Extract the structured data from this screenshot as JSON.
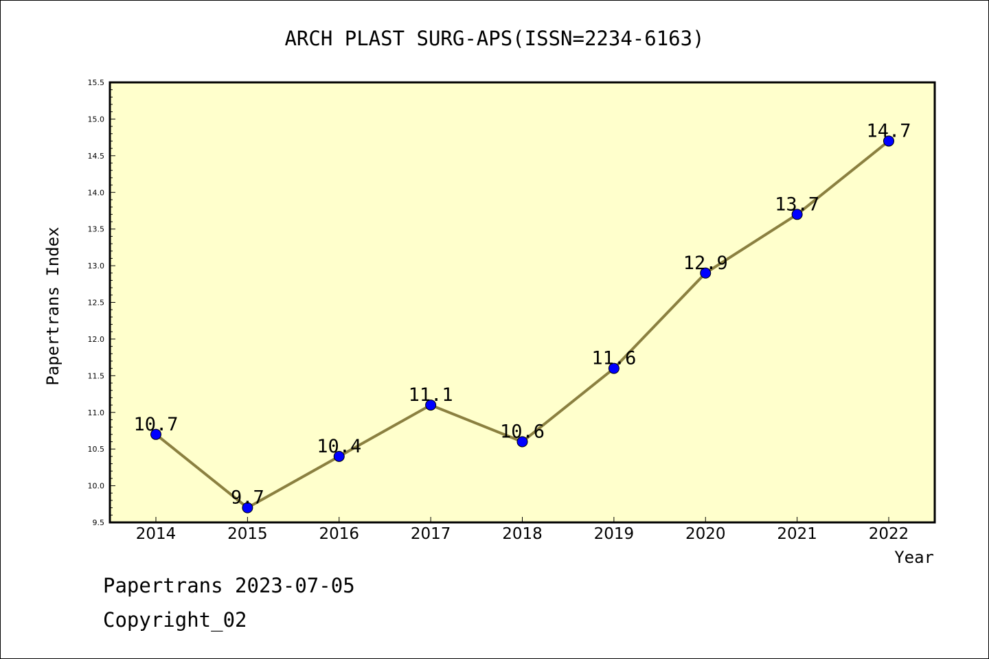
{
  "chart_data": {
    "type": "line",
    "title": "ARCH PLAST SURG-APS(ISSN=2234-6163)",
    "xlabel": "Year",
    "ylabel": "Papertrans Index",
    "categories": [
      "2014",
      "2015",
      "2016",
      "2017",
      "2018",
      "2019",
      "2020",
      "2021",
      "2022"
    ],
    "series": [
      {
        "values": [
          10.7,
          9.7,
          10.4,
          11.1,
          10.6,
          11.6,
          12.9,
          13.7,
          14.7
        ],
        "labels": [
          "10.7",
          "9.7",
          "10.4",
          "11.1",
          "10.6",
          "11.6",
          "12.9",
          "13.7",
          "14.7"
        ]
      }
    ],
    "ylim": [
      9.5,
      15.5
    ],
    "yticks": [
      "9.5",
      "10.0",
      "10.5",
      "11.0",
      "11.5",
      "12.0",
      "12.5",
      "13.0",
      "13.5",
      "14.0",
      "14.5",
      "15.0",
      "15.5"
    ],
    "grid": false,
    "colors": {
      "plot_background": "#ffffcc",
      "line": "#8b8040",
      "marker": "#0000ff"
    }
  },
  "footer": {
    "date_line": "Papertrans 2023-07-05",
    "copyright": "Copyright_02"
  }
}
